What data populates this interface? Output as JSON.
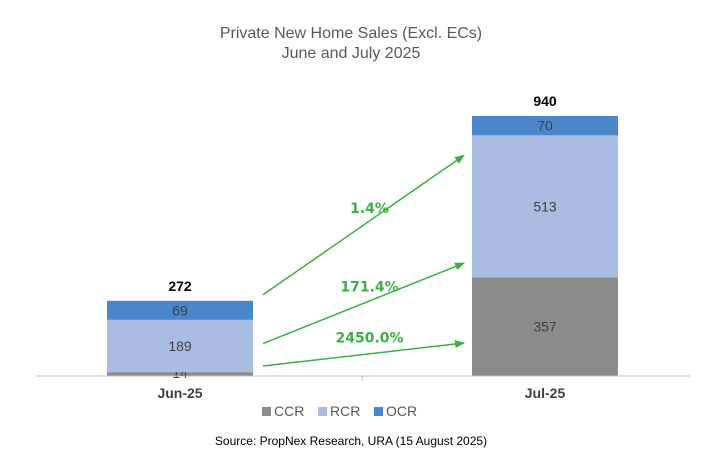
{
  "chart_data": {
    "type": "bar",
    "stacked": true,
    "title": "Private New Home Sales (Excl. ECs)",
    "subtitle": "June and July 2025",
    "categories": [
      "Jun-25",
      "Jul-25"
    ],
    "series": [
      {
        "name": "CCR",
        "values": [
          14,
          357
        ],
        "color": "#8c8c8c"
      },
      {
        "name": "RCR",
        "values": [
          189,
          513
        ],
        "color": "#a9bde3"
      },
      {
        "name": "OCR",
        "values": [
          69,
          70
        ],
        "color": "#4a86cc"
      }
    ],
    "totals": [
      272,
      940
    ],
    "growth": [
      {
        "label": "1.4%",
        "series": "OCR"
      },
      {
        "label": "171.4%",
        "series": "RCR"
      },
      {
        "label": "2450.0%",
        "series": "CCR"
      }
    ],
    "growth_color": "#3cb043",
    "ylim": [
      0,
      1000
    ],
    "legend_position": "bottom",
    "grid": false,
    "source": "Source: PropNex Research, URA (15 August 2025)"
  }
}
